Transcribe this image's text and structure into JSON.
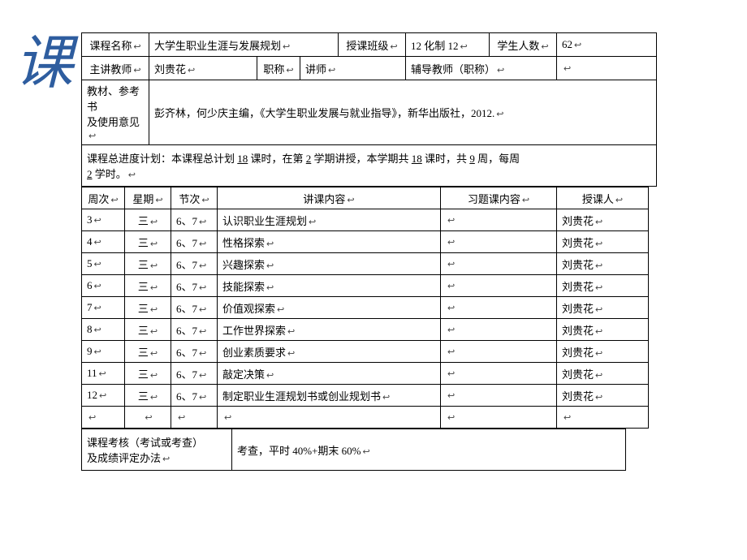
{
  "watermark": "课",
  "header": {
    "course_name_label": "课程名称",
    "course_name": "大学生职业生涯与发展规划",
    "class_label": "授课班级",
    "class_value": "12 化制 12",
    "student_count_label": "学生人数",
    "student_count": "62",
    "lead_teacher_label": "主讲教师",
    "lead_teacher": "刘贵花",
    "title_label": "职称",
    "title_value": "讲师",
    "assist_teacher_label": "辅导教师（职称）",
    "textbook_label_1": "教材、参考书",
    "textbook_label_2": "及使用意见",
    "textbook_value": "彭齐林，何少庆主编，《大学生职业发展与就业指导》，新华出版社，2012."
  },
  "plan": {
    "prefix": "课程总进度计划：本课程总计划",
    "hours": "18",
    "mid1": "课时，在第",
    "semester": "2",
    "mid2": "学期讲授，本学期共",
    "sem_hours": "18",
    "mid3": "课时，共",
    "weeks": "9",
    "mid4": "周，每周",
    "perweek": "2",
    "suffix": "学时。"
  },
  "schedule": {
    "headers": {
      "week": "周次",
      "day": "星期",
      "period": "节次",
      "lecture": "讲课内容",
      "exercise": "习题课内容",
      "teacher": "授课人"
    },
    "rows": [
      {
        "week": "3",
        "day": "三",
        "period": "6、7",
        "lecture": "认识职业生涯规划",
        "exercise": "",
        "teacher": "刘贵花"
      },
      {
        "week": "4",
        "day": "三",
        "period": "6、7",
        "lecture": "性格探索",
        "exercise": "",
        "teacher": "刘贵花"
      },
      {
        "week": "5",
        "day": "三",
        "period": "6、7",
        "lecture": "兴趣探索",
        "exercise": "",
        "teacher": "刘贵花"
      },
      {
        "week": "6",
        "day": "三",
        "period": "6、7",
        "lecture": "技能探索",
        "exercise": "",
        "teacher": "刘贵花"
      },
      {
        "week": "7",
        "day": "三",
        "period": "6、7",
        "lecture": "价值观探索",
        "exercise": "",
        "teacher": "刘贵花"
      },
      {
        "week": "8",
        "day": "三",
        "period": "6、7",
        "lecture": "工作世界探索",
        "exercise": "",
        "teacher": "刘贵花"
      },
      {
        "week": "9",
        "day": "三",
        "period": "6、7",
        "lecture": "创业素质要求",
        "exercise": "",
        "teacher": "刘贵花"
      },
      {
        "week": "11",
        "day": "三",
        "period": "6、7",
        "lecture": "敲定决策",
        "exercise": "",
        "teacher": "刘贵花"
      },
      {
        "week": "12",
        "day": "三",
        "period": "6、7",
        "lecture": "制定职业生涯规划书或创业规划书",
        "exercise": "",
        "teacher": "刘贵花"
      },
      {
        "week": "",
        "day": "",
        "period": "",
        "lecture": "",
        "exercise": "",
        "teacher": ""
      }
    ]
  },
  "assess": {
    "label_1": "课程考核（考试或考查）",
    "label_2": "及成绩评定办法",
    "value": "考查，平时 40%+期末 60%"
  },
  "style": {
    "border_color": "#000000",
    "font_size": 13,
    "watermark_color": "#2e5d9f"
  }
}
